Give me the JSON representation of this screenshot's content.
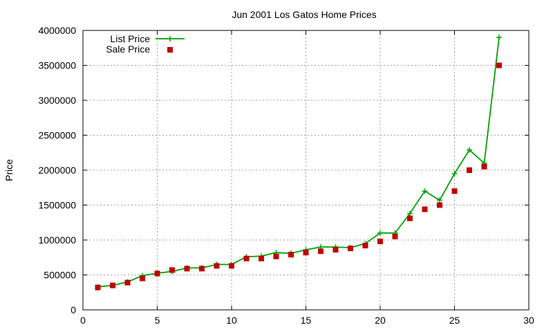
{
  "chart_data": {
    "type": "line",
    "title": "Jun 2001 Los Gatos Home Prices",
    "xlabel": "",
    "ylabel": "Price",
    "xlim": [
      0,
      30
    ],
    "ylim": [
      0,
      4000000
    ],
    "x_ticks": [
      0,
      5,
      10,
      15,
      20,
      25,
      30
    ],
    "y_ticks": [
      0,
      500000,
      1000000,
      1500000,
      2000000,
      2500000,
      3000000,
      3500000,
      4000000
    ],
    "grid": true,
    "legend_position": "top-left",
    "x": [
      1,
      2,
      3,
      4,
      5,
      6,
      7,
      8,
      9,
      10,
      11,
      12,
      13,
      14,
      15,
      16,
      17,
      18,
      19,
      20,
      21,
      22,
      23,
      24,
      25,
      26,
      27,
      28
    ],
    "series": [
      {
        "name": "List Price",
        "style": "line+cross",
        "color": "#00a000",
        "values": [
          330000,
          350000,
          400000,
          490000,
          525000,
          550000,
          600000,
          600000,
          650000,
          650000,
          760000,
          770000,
          820000,
          810000,
          860000,
          900000,
          900000,
          890000,
          950000,
          1100000,
          1100000,
          1380000,
          1700000,
          1570000,
          1950000,
          2290000,
          2100000,
          3900000
        ]
      },
      {
        "name": "Sale Price",
        "style": "square",
        "color": "#c00000",
        "values": [
          320000,
          350000,
          390000,
          450000,
          520000,
          570000,
          590000,
          590000,
          630000,
          630000,
          735000,
          735000,
          765000,
          790000,
          820000,
          840000,
          860000,
          880000,
          920000,
          980000,
          1050000,
          1310000,
          1440000,
          1500000,
          1700000,
          2000000,
          2050000,
          3500000
        ]
      }
    ]
  }
}
